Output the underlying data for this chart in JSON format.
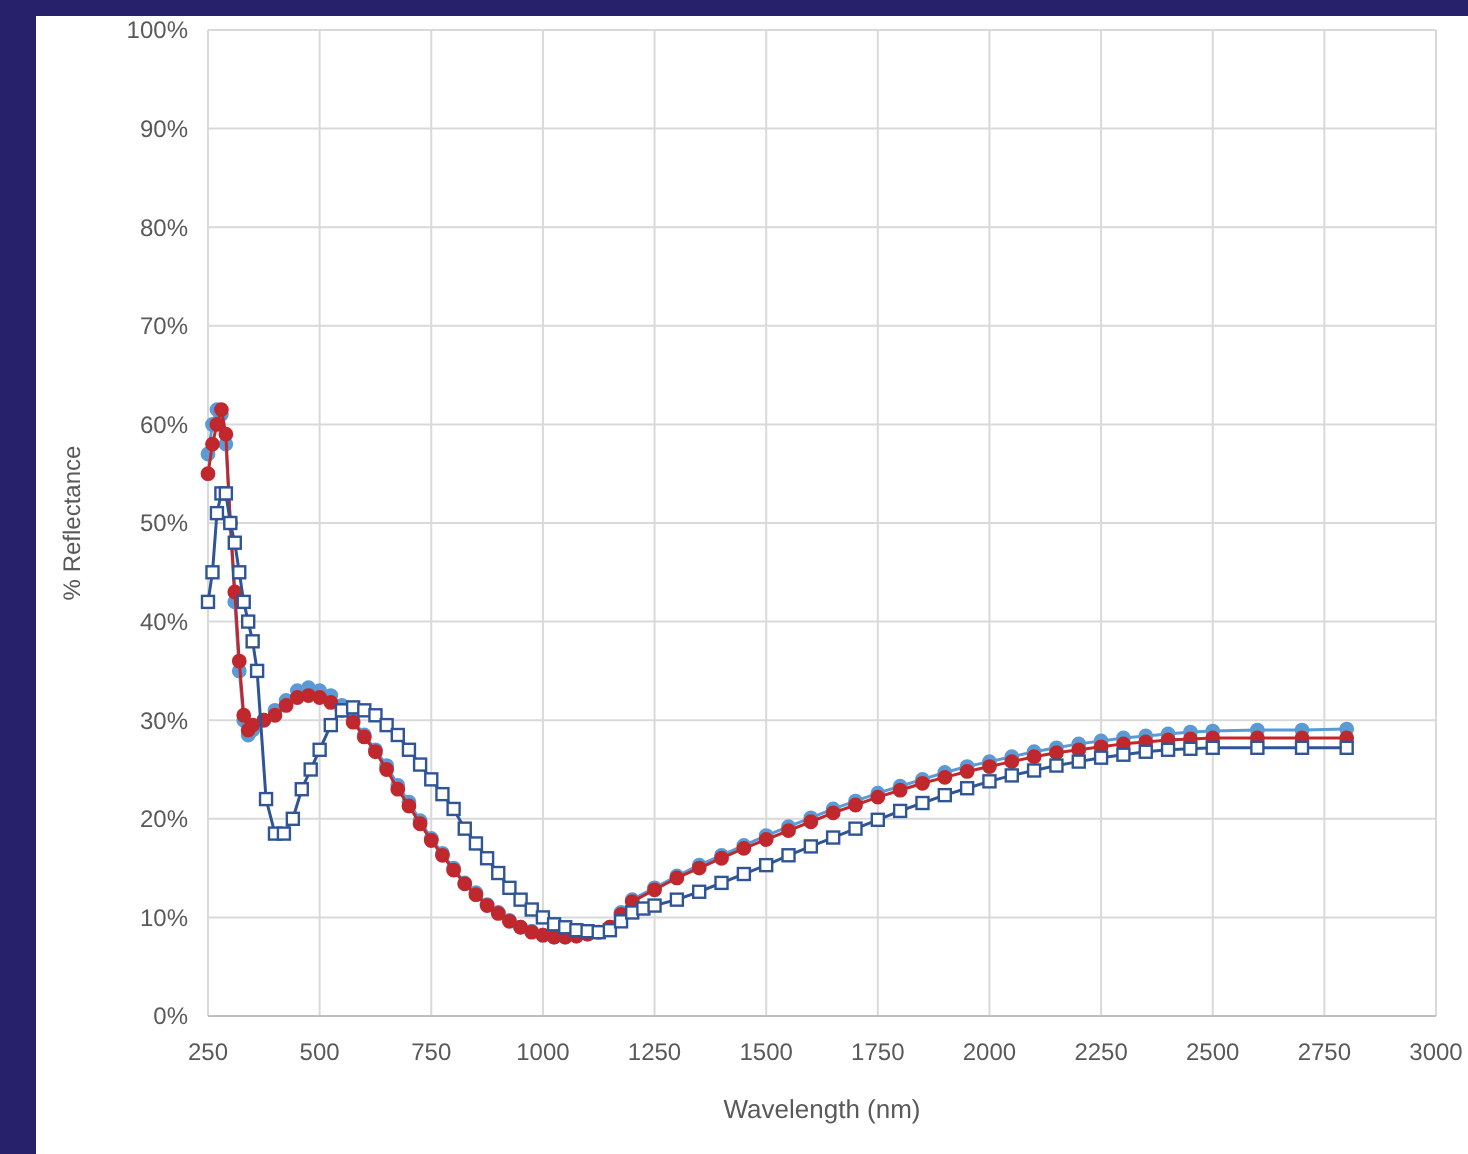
{
  "chart_data": {
    "type": "line",
    "xlabel": "Wavelength (nm)",
    "ylabel": "% Reflectance",
    "grid": true,
    "line_style": "solid",
    "xlim": [
      250,
      3000
    ],
    "xticks": [
      250,
      500,
      750,
      1000,
      1250,
      1500,
      1750,
      2000,
      2250,
      2500,
      2750,
      3000
    ],
    "ylim": [
      0,
      100
    ],
    "yticks": [
      {
        "value": 0,
        "label": "0%"
      },
      {
        "value": 10,
        "label": "10%"
      },
      {
        "value": 20,
        "label": "20%"
      },
      {
        "value": 30,
        "label": "30%"
      },
      {
        "value": 40,
        "label": "40%"
      },
      {
        "value": 50,
        "label": "50%"
      },
      {
        "value": 60,
        "label": "60%"
      },
      {
        "value": 70,
        "label": "70%"
      },
      {
        "value": 80,
        "label": "80%"
      },
      {
        "value": 90,
        "label": "90%"
      },
      {
        "value": 100,
        "label": "100%"
      }
    ],
    "series": [
      {
        "color": "#5b9bd5",
        "marker": "circle",
        "x": [
          250,
          260,
          270,
          280,
          290,
          300,
          310,
          320,
          330,
          340,
          350,
          375,
          400,
          425,
          450,
          475,
          500,
          525,
          550,
          575,
          600,
          625,
          650,
          675,
          700,
          725,
          750,
          775,
          800,
          825,
          850,
          875,
          900,
          925,
          950,
          975,
          1000,
          1025,
          1050,
          1075,
          1100,
          1125,
          1150,
          1175,
          1200,
          1250,
          1300,
          1350,
          1400,
          1450,
          1500,
          1550,
          1600,
          1650,
          1700,
          1750,
          1800,
          1850,
          1900,
          1950,
          2000,
          2050,
          2100,
          2150,
          2200,
          2250,
          2300,
          2350,
          2400,
          2450,
          2500,
          2600,
          2700,
          2800
        ],
        "values": [
          57,
          60,
          61.5,
          61,
          58,
          50,
          42,
          35,
          30,
          28.5,
          29,
          30,
          31,
          32,
          33,
          33.3,
          33,
          32.5,
          31.5,
          30,
          28.5,
          27,
          25.4,
          23.4,
          21.7,
          19.8,
          18,
          16.5,
          15,
          13.5,
          12.5,
          11.3,
          10.5,
          9.7,
          9,
          8.6,
          8.2,
          8,
          8,
          8.1,
          8.3,
          8.5,
          9,
          10.5,
          11.8,
          13,
          14.2,
          15.3,
          16.3,
          17.3,
          18.3,
          19.2,
          20.1,
          21,
          21.8,
          22.6,
          23.3,
          24,
          24.7,
          25.3,
          25.8,
          26.3,
          26.8,
          27.2,
          27.6,
          27.9,
          28.2,
          28.4,
          28.6,
          28.8,
          28.9,
          29,
          29,
          29.1
        ]
      },
      {
        "color": "#c0282d",
        "marker": "circle",
        "x": [
          250,
          260,
          270,
          280,
          290,
          300,
          310,
          320,
          330,
          340,
          350,
          375,
          400,
          425,
          450,
          475,
          500,
          525,
          550,
          575,
          600,
          625,
          650,
          675,
          700,
          725,
          750,
          775,
          800,
          825,
          850,
          875,
          900,
          925,
          950,
          975,
          1000,
          1025,
          1050,
          1075,
          1100,
          1125,
          1150,
          1175,
          1200,
          1250,
          1300,
          1350,
          1400,
          1450,
          1500,
          1550,
          1600,
          1650,
          1700,
          1750,
          1800,
          1850,
          1900,
          1950,
          2000,
          2050,
          2100,
          2150,
          2200,
          2250,
          2300,
          2350,
          2400,
          2450,
          2500,
          2600,
          2700,
          2800
        ],
        "values": [
          55,
          58,
          60,
          61.5,
          59,
          50,
          43,
          36,
          30.5,
          29,
          29.5,
          30,
          30.5,
          31.5,
          32.3,
          32.5,
          32.3,
          31.8,
          31,
          29.8,
          28.3,
          26.8,
          25,
          23,
          21.3,
          19.5,
          17.8,
          16.3,
          14.8,
          13.4,
          12.3,
          11.2,
          10.4,
          9.6,
          9,
          8.5,
          8.2,
          8,
          8,
          8.1,
          8.3,
          8.5,
          9,
          10.3,
          11.6,
          12.8,
          14,
          15,
          16,
          17,
          17.9,
          18.8,
          19.7,
          20.6,
          21.4,
          22.2,
          22.9,
          23.6,
          24.2,
          24.8,
          25.3,
          25.8,
          26.3,
          26.7,
          27,
          27.3,
          27.6,
          27.8,
          28,
          28.1,
          28.2,
          28.2,
          28.2,
          28.2
        ]
      },
      {
        "color": "#2f5597",
        "marker": "square",
        "x": [
          250,
          260,
          270,
          280,
          290,
          300,
          310,
          320,
          330,
          340,
          350,
          360,
          380,
          400,
          420,
          440,
          460,
          480,
          500,
          525,
          550,
          575,
          600,
          625,
          650,
          675,
          700,
          725,
          750,
          775,
          800,
          825,
          850,
          875,
          900,
          925,
          950,
          975,
          1000,
          1025,
          1050,
          1075,
          1100,
          1125,
          1150,
          1175,
          1200,
          1225,
          1250,
          1300,
          1350,
          1400,
          1450,
          1500,
          1550,
          1600,
          1650,
          1700,
          1750,
          1800,
          1850,
          1900,
          1950,
          2000,
          2050,
          2100,
          2150,
          2200,
          2250,
          2300,
          2350,
          2400,
          2450,
          2500,
          2600,
          2700,
          2800
        ],
        "values": [
          42,
          45,
          51,
          53,
          53,
          50,
          48,
          45,
          42,
          40,
          38,
          35,
          22,
          18.5,
          18.5,
          20,
          23,
          25,
          27,
          29.5,
          31,
          31.3,
          31,
          30.5,
          29.5,
          28.5,
          27,
          25.5,
          24,
          22.5,
          21,
          19,
          17.5,
          16,
          14.5,
          13,
          11.8,
          10.8,
          10,
          9.3,
          9,
          8.7,
          8.6,
          8.5,
          8.7,
          9.6,
          10.5,
          10.9,
          11.2,
          11.8,
          12.6,
          13.5,
          14.4,
          15.3,
          16.3,
          17.2,
          18.1,
          19,
          19.9,
          20.8,
          21.6,
          22.4,
          23.1,
          23.8,
          24.4,
          24.9,
          25.4,
          25.8,
          26.2,
          26.5,
          26.8,
          27,
          27.1,
          27.2,
          27.2,
          27.2,
          27.2
        ]
      }
    ]
  }
}
